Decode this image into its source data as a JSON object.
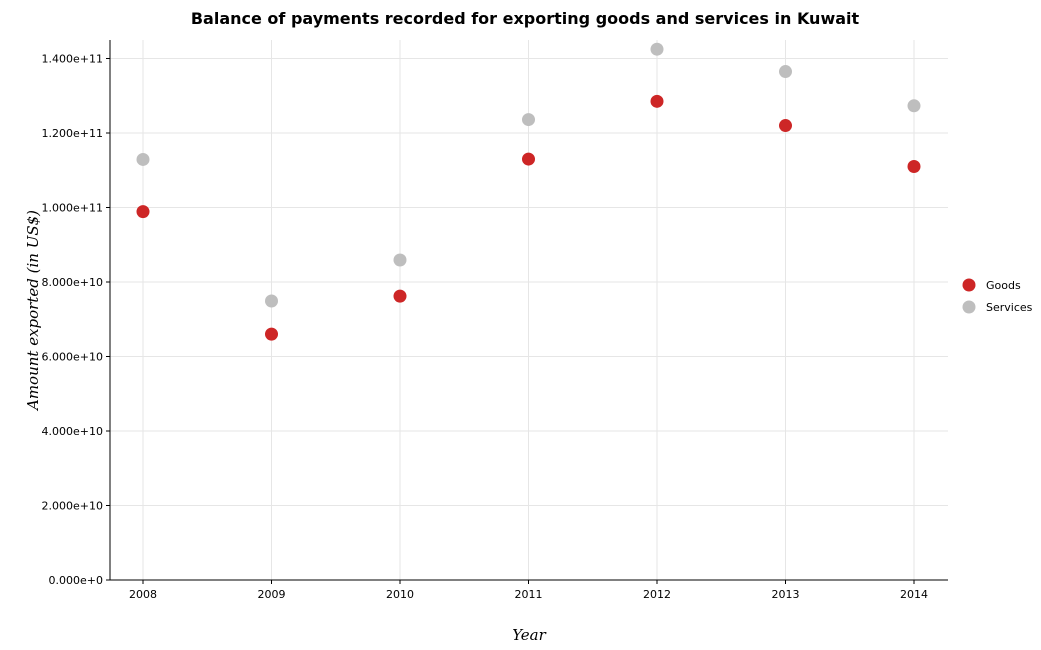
{
  "chart_data": {
    "type": "scatter",
    "title": "Balance of payments recorded for exporting goods and services in Kuwait",
    "xlabel": "Year",
    "ylabel": "Amount exported (in US$)",
    "categories": [
      "2008",
      "2009",
      "2010",
      "2011",
      "2012",
      "2013",
      "2014"
    ],
    "ylim": [
      0,
      150000000000
    ],
    "yticks": [
      0,
      20000000000,
      40000000000,
      60000000000,
      80000000000,
      100000000000,
      120000000000,
      140000000000
    ],
    "ytick_labels": [
      "0.000e+0",
      "2.000e+10",
      "4.000e+10",
      "6.000e+10",
      "8.000e+10",
      "1.000e+11",
      "1.200e+11",
      "1.400e+11"
    ],
    "grid": true,
    "legend_position": "right",
    "series": [
      {
        "name": "Goods",
        "color": "#cd2626",
        "values": [
          98900000000,
          66000000000,
          76200000000,
          113000000000,
          128500000000,
          122000000000,
          111000000000
        ]
      },
      {
        "name": "Services",
        "color": "#bebebe",
        "values": [
          112900000000,
          74900000000,
          85900000000,
          123600000000,
          142500000000,
          136500000000,
          127300000000
        ]
      }
    ]
  }
}
